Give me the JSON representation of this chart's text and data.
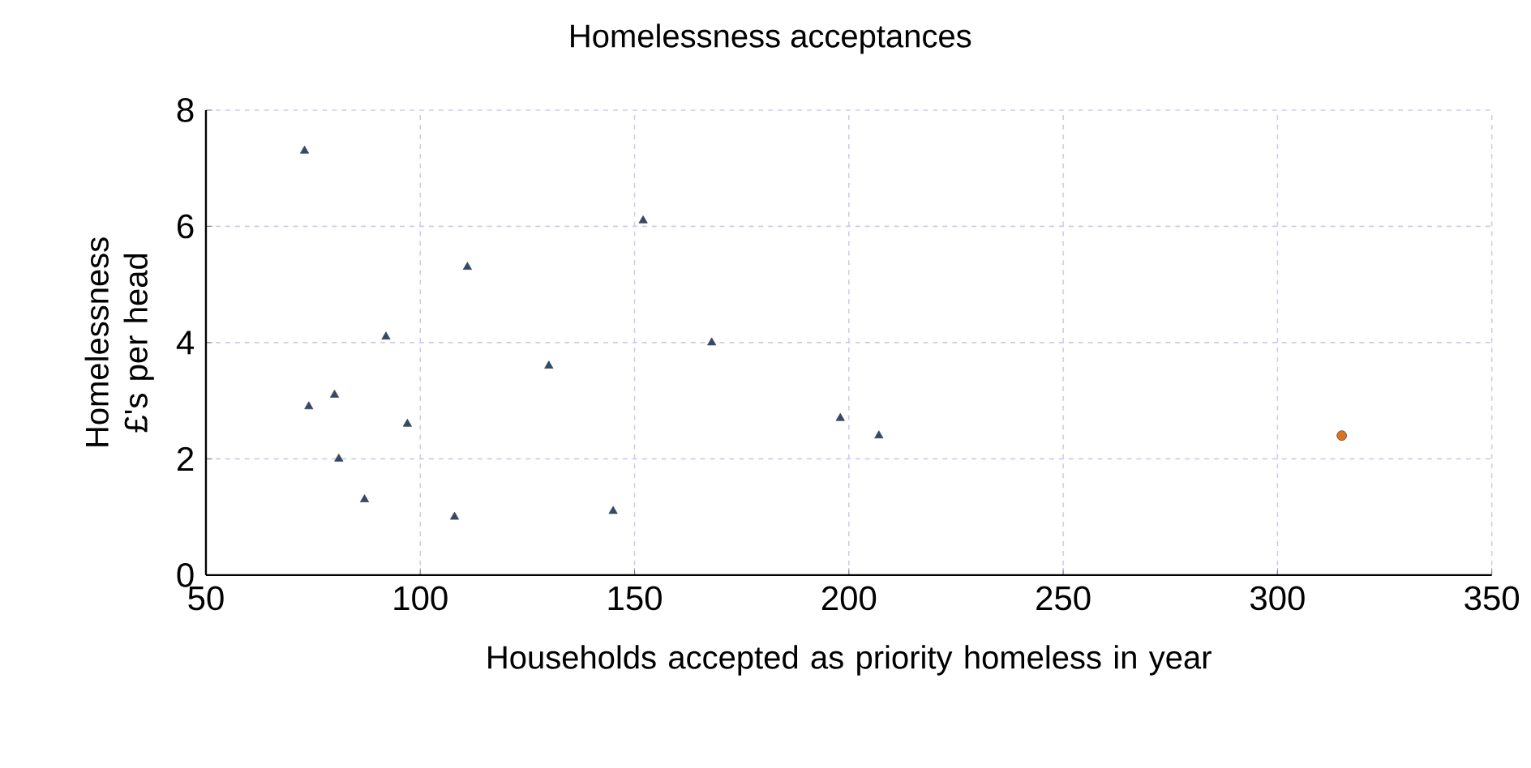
{
  "chart_data": {
    "type": "scatter",
    "title": "Homelessness acceptances",
    "xlabel": "Households accepted as priority homeless in year",
    "ylabel": "Homelessness £'s per head",
    "xlim": [
      50,
      350
    ],
    "xticks": [
      50,
      100,
      150,
      200,
      250,
      300,
      350
    ],
    "ylim": [
      0,
      8
    ],
    "yticks": [
      0,
      2,
      4,
      6,
      8
    ],
    "grid": true,
    "series": [
      {
        "color": "#2e4a6e",
        "marker": "triangle",
        "x": [
          73,
          152,
          111,
          92,
          168,
          130,
          74,
          80,
          97,
          198,
          207,
          81,
          87,
          108,
          145
        ],
        "values": [
          7.3,
          6.1,
          5.3,
          4.1,
          4.0,
          3.6,
          2.9,
          3.1,
          2.6,
          2.7,
          2.4,
          2.0,
          1.3,
          1.0,
          1.1
        ]
      },
      {
        "color": "#e0701f",
        "marker": "circle",
        "x": [
          315
        ],
        "values": [
          2.4
        ]
      }
    ]
  }
}
